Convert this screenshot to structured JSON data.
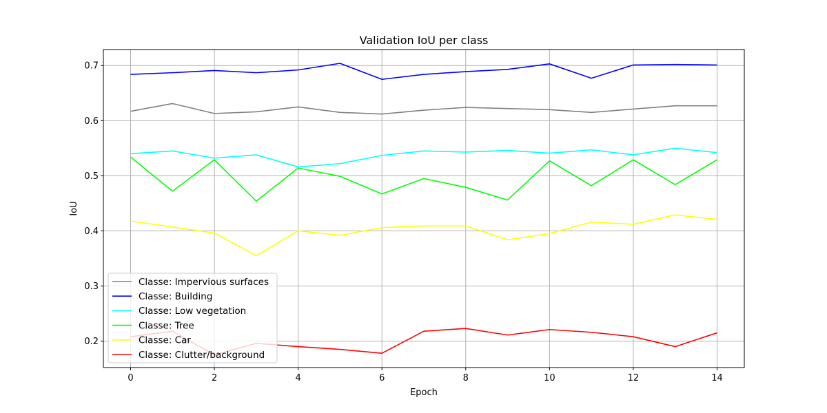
{
  "chart_data": {
    "type": "line",
    "title": "Validation IoU per class",
    "xlabel": "Epoch",
    "ylabel": "IoU",
    "xlim": [
      -0.65,
      14.65
    ],
    "ylim": [
      0.152,
      0.729
    ],
    "xticks": [
      0,
      2,
      4,
      6,
      8,
      10,
      12,
      14
    ],
    "yticks": [
      0.2,
      0.3,
      0.4,
      0.5,
      0.6,
      0.7
    ],
    "grid": true,
    "legend_position": "lower-left",
    "x": [
      0,
      1,
      2,
      3,
      4,
      5,
      6,
      7,
      8,
      9,
      10,
      11,
      12,
      13,
      14
    ],
    "series": [
      {
        "name": "Classe: Impervious surfaces",
        "color": "#808080",
        "values": [
          0.617,
          0.631,
          0.613,
          0.616,
          0.625,
          0.615,
          0.612,
          0.619,
          0.624,
          0.622,
          0.62,
          0.615,
          0.621,
          0.627,
          0.627
        ]
      },
      {
        "name": "Classe: Building",
        "color": "#0000ff",
        "values": [
          0.684,
          0.687,
          0.691,
          0.687,
          0.692,
          0.704,
          0.675,
          0.684,
          0.689,
          0.693,
          0.703,
          0.677,
          0.701,
          0.702,
          0.701
        ]
      },
      {
        "name": "Classe: Low vegetation",
        "color": "#00ffff",
        "values": [
          0.54,
          0.545,
          0.532,
          0.538,
          0.516,
          0.522,
          0.537,
          0.545,
          0.543,
          0.546,
          0.541,
          0.547,
          0.538,
          0.55,
          0.542
        ]
      },
      {
        "name": "Classe: Tree",
        "color": "#00ff00",
        "values": [
          0.534,
          0.472,
          0.529,
          0.454,
          0.514,
          0.499,
          0.467,
          0.495,
          0.479,
          0.456,
          0.527,
          0.482,
          0.529,
          0.484,
          0.529
        ]
      },
      {
        "name": "Classe: Car",
        "color": "#ffff00",
        "values": [
          0.418,
          0.407,
          0.396,
          0.355,
          0.4,
          0.392,
          0.406,
          0.409,
          0.409,
          0.384,
          0.395,
          0.416,
          0.412,
          0.429,
          0.421
        ]
      },
      {
        "name": "Classe: Clutter/background",
        "color": "#ff0000",
        "values": [
          0.208,
          0.218,
          0.175,
          0.196,
          0.19,
          0.185,
          0.178,
          0.218,
          0.223,
          0.211,
          0.221,
          0.216,
          0.208,
          0.19,
          0.215
        ]
      }
    ]
  }
}
